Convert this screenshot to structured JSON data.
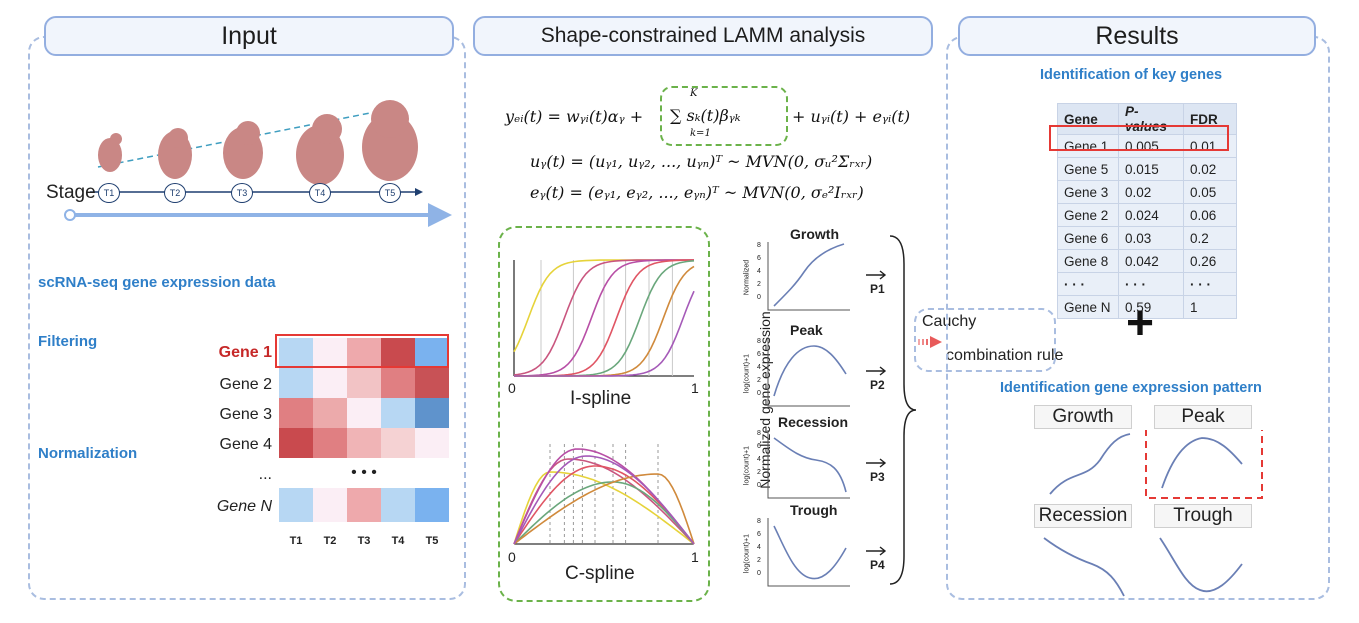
{
  "panels": {
    "input": {
      "title": "Input"
    },
    "analysis": {
      "title": "Shape-constrained LAMM analysis"
    },
    "results": {
      "title": "Results"
    }
  },
  "input": {
    "stage_label": "Stage",
    "stages": [
      "T1",
      "T2",
      "T3",
      "T4",
      "T5"
    ],
    "steps": [
      "scRNA-seq gene expression data",
      "Filtering",
      "Normalization"
    ],
    "genes": [
      "Gene 1",
      "Gene 2",
      "Gene 3",
      "Gene 4",
      "...",
      "Gene N"
    ],
    "heatmap_cols": [
      "T1",
      "T2",
      "T3",
      "T4",
      "T5"
    ],
    "ellipsis": "•  •  •",
    "heatmap_colors": [
      [
        "#b7d7f3",
        "#fbeef5",
        "#eea9ac",
        "#c94a4e",
        "#7ab2ef"
      ],
      [
        "#b7d7f3",
        "#fbeef5",
        "#f2c3c5",
        "#e07f82",
        "#c85256"
      ],
      [
        "#e07f82",
        "#ecaaab",
        "#fbeef5",
        "#b7d7f3",
        "#5f93cc"
      ],
      [
        "#c94a4e",
        "#e07f82",
        "#f0b4b6",
        "#f5d2d3",
        "#fbeef5"
      ],
      null,
      [
        "#b7d7f3",
        "#fbeef5",
        "#eea9ac",
        "#b7d7f3",
        "#7ab2ef"
      ]
    ]
  },
  "analysis": {
    "eq1_left": "yₑᵢ(t) = wᵧᵢ(t)αᵧ +",
    "eq1_sum": "∑ sₖ(t)βᵧₖ",
    "eq1_sum_top": "K",
    "eq1_sum_bottom": "k=1",
    "eq1_right": "+ uᵧᵢ(t) + eᵧᵢ(t)",
    "eq2": "uᵧ(t) = (uᵧ₁, uᵧ₂, ..., uᵧₙ)ᵀ ~ MVN(0, σᵤ²Σᵣₓᵣ)",
    "eq3": "eᵧ(t) = (eᵧ₁, eᵧ₂, ..., eᵧₙ)ᵀ ~ MVN(0, σₑ²Iᵣₓᵣ)",
    "ispline_label": "I-spline",
    "cspline_label": "C-spline",
    "axis_0": "0",
    "axis_1": "1",
    "y_axis_label": "Normalized gene expression",
    "patterns": [
      {
        "title": "Growth",
        "ylabel": "Normalized",
        "p": "P1",
        "ticks": [
          "8",
          "6",
          "4",
          "2",
          "0"
        ]
      },
      {
        "title": "Peak",
        "ylabel": "log(count)+1",
        "p": "P2",
        "ticks": [
          "8",
          "6",
          "4",
          "2",
          "0"
        ]
      },
      {
        "title": "Recession",
        "ylabel": "log(count)+1",
        "p": "P3",
        "ticks": [
          "8",
          "6",
          "4",
          "2",
          "0"
        ]
      },
      {
        "title": "Trough",
        "ylabel": "log(count)+1",
        "p": "P4",
        "ticks": [
          "8",
          "6",
          "4",
          "2",
          "0"
        ]
      }
    ],
    "cauchy": [
      "Cauchy",
      "combination rule"
    ],
    "spline_colors": [
      "#e6d33a",
      "#c9567f",
      "#b84fa6",
      "#e05564",
      "#6aa77c",
      "#d08a3c",
      "#a55ab8"
    ]
  },
  "results": {
    "key_genes_title": "Identification of key genes",
    "table": {
      "headers": [
        "Gene",
        "P-values",
        "FDR"
      ],
      "rows": [
        [
          "Gene 1",
          "0.005",
          "0.01"
        ],
        [
          "Gene 5",
          "0.015",
          "0.02"
        ],
        [
          "Gene 3",
          "0.02",
          "0.05"
        ],
        [
          "Gene 2",
          "0.024",
          "0.06"
        ],
        [
          "Gene 6",
          "0.03",
          "0.2"
        ],
        [
          "Gene 8",
          "0.042",
          "0.26"
        ],
        [
          "·  ·  ·",
          "·  ·  ·",
          "·  ·  ·"
        ],
        [
          "Gene N",
          "0.59",
          "1"
        ]
      ]
    },
    "plus": "+",
    "pattern_title": "Identification gene expression pattern",
    "pattern_labels": [
      "Growth",
      "Peak",
      "Recession",
      "Trough"
    ]
  },
  "colors": {
    "accent_blue": "#2f7fc8",
    "highlight_red": "#e53935",
    "dashed_green": "#6bb24a",
    "curve": "#6a7fb5"
  }
}
